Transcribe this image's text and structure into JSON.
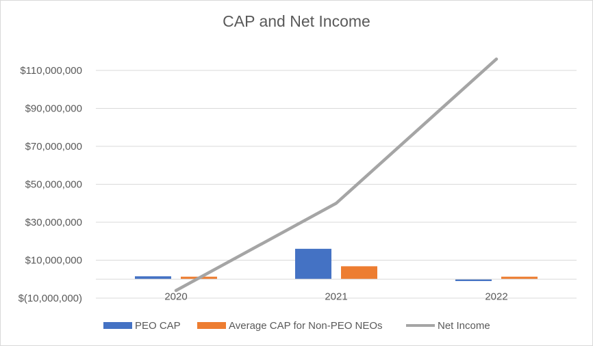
{
  "chart_data": {
    "type": "bar",
    "title": "CAP and Net Income",
    "categories": [
      "2020",
      "2021",
      "2022"
    ],
    "ylim": [
      -10000000,
      110000000
    ],
    "yticks": [
      -10000000,
      10000000,
      30000000,
      50000000,
      70000000,
      90000000,
      110000000
    ],
    "ytick_labels": [
      "$(10,000,000)",
      "$10,000,000",
      "$30,000,000",
      "$50,000,000",
      "$70,000,000",
      "$90,000,000",
      "$110,000,000"
    ],
    "grid": true,
    "legend_position": "bottom",
    "series": [
      {
        "name": "PEO CAP",
        "kind": "bar",
        "color": "#4472c4",
        "values": [
          1500000,
          16000000,
          -1000000
        ]
      },
      {
        "name": "Average CAP for Non-PEO NEOs",
        "kind": "bar",
        "color": "#ed7d31",
        "values": [
          1300000,
          6800000,
          1300000
        ]
      },
      {
        "name": "Net Income",
        "kind": "line",
        "color": "#a5a5a5",
        "values": [
          -6000000,
          40000000,
          116000000
        ]
      }
    ]
  }
}
